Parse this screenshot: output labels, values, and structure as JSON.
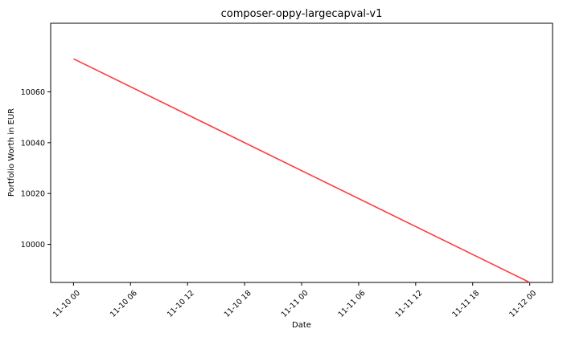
{
  "chart_data": {
    "type": "line",
    "title": "composer-oppy-largecapval-v1",
    "xlabel": "Date",
    "ylabel": "Portfolio Worth in EUR",
    "x_ticks": [
      {
        "value": 0,
        "label": "11-10 00"
      },
      {
        "value": 6,
        "label": "11-10 06"
      },
      {
        "value": 12,
        "label": "11-10 12"
      },
      {
        "value": 18,
        "label": "11-10 18"
      },
      {
        "value": 24,
        "label": "11-11 00"
      },
      {
        "value": 30,
        "label": "11-11 06"
      },
      {
        "value": 36,
        "label": "11-11 12"
      },
      {
        "value": 42,
        "label": "11-11 18"
      },
      {
        "value": 48,
        "label": "11-12 00"
      }
    ],
    "y_ticks": [
      10000,
      10020,
      10040,
      10060
    ],
    "xlim": [
      -2.4,
      50.4
    ],
    "ylim": [
      9985,
      10087
    ],
    "grid": false,
    "series": [
      {
        "color": "#ff3a3a",
        "x": [
          0,
          48
        ],
        "y": [
          10073,
          9985
        ]
      }
    ]
  }
}
